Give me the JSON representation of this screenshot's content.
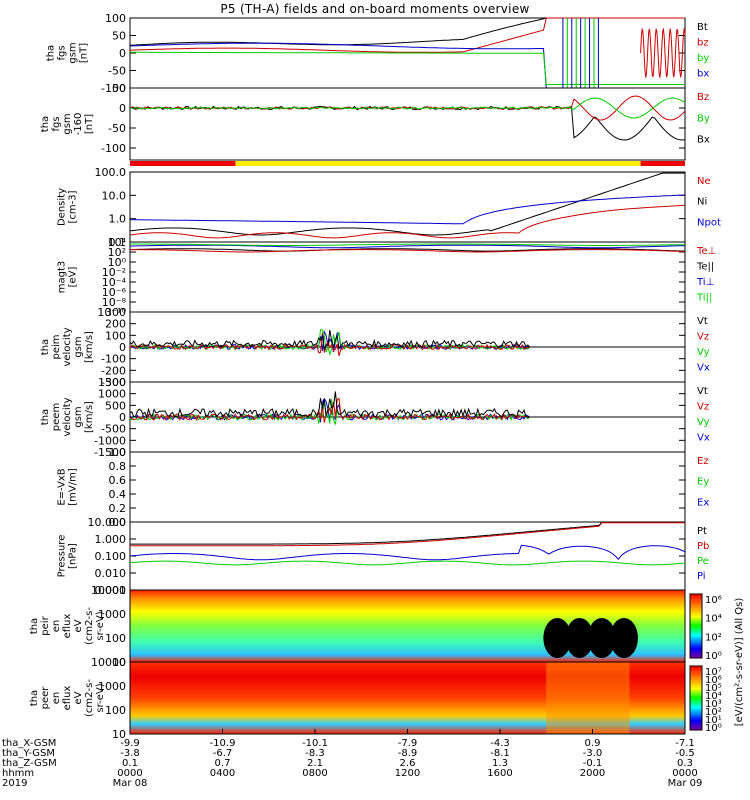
{
  "title": "P5 (TH-A) fields and on-board moments overview",
  "colors": {
    "black": "#000000",
    "red": "#cc0000",
    "green": "#00cc00",
    "blue": "#0000cc",
    "yellow": "#ffee00",
    "barred": "#ee0000"
  },
  "chart_data": [
    {
      "type": "line",
      "panel": "fgs",
      "ylabel_lines": [
        "tha",
        "fgs",
        "gsm",
        "[nT]"
      ],
      "ylim": [
        -100,
        100
      ],
      "ticks": [
        "100",
        "50",
        "0",
        "-50",
        "-100"
      ],
      "tick_values": [
        100,
        50,
        0,
        -50,
        -100
      ],
      "legend": [
        {
          "text": "Bt",
          "color": "#000000"
        },
        {
          "text": "bz",
          "color": "#cc0000"
        },
        {
          "text": "by",
          "color": "#00cc00"
        },
        {
          "text": "bx",
          "color": "#0000cc"
        }
      ]
    },
    {
      "type": "line",
      "panel": "fgs_zoom",
      "ylabel_lines": [
        "tha",
        "fgs",
        "gsm",
        "-160",
        "[nT]"
      ],
      "ylim": [
        -130,
        50
      ],
      "ticks": [
        "50",
        "0",
        "-50",
        "-100"
      ],
      "tick_values": [
        50,
        0,
        -50,
        -100
      ],
      "legend": [
        {
          "text": "Bz",
          "color": "#cc0000"
        },
        {
          "text": "By",
          "color": "#00cc00"
        },
        {
          "text": "Bx",
          "color": "#000000"
        }
      ]
    },
    {
      "type": "line",
      "panel": "density",
      "ylabel_lines": [
        "Density",
        "[cm-3]"
      ],
      "log": true,
      "ticks": [
        "100.0",
        "10.0",
        "1.0",
        "0.1"
      ],
      "tick_values": [
        100,
        10,
        1,
        0.1
      ],
      "legend": [
        {
          "text": "Ne",
          "color": "#cc0000"
        },
        {
          "text": "Ni",
          "color": "#000000"
        },
        {
          "text": "Npot",
          "color": "#0000cc"
        }
      ]
    },
    {
      "type": "line",
      "panel": "temperature",
      "ylabel_lines": [
        "magt3",
        "[eV]"
      ],
      "log": true,
      "ticks": [
        "10⁴",
        "10²",
        "10⁰",
        "10⁻²",
        "10⁻⁴",
        "10⁻⁶",
        "10⁻⁸",
        "10⁻¹⁰"
      ],
      "tick_values": [
        10000,
        100,
        1,
        0.01,
        0.0001,
        1e-06,
        1e-08,
        1e-10
      ],
      "legend": [
        {
          "text": "Te⊥",
          "color": "#cc0000"
        },
        {
          "text": "Te||",
          "color": "#000000"
        },
        {
          "text": "Ti⊥",
          "color": "#0000cc"
        },
        {
          "text": "Ti||",
          "color": "#00cc00"
        }
      ]
    },
    {
      "type": "line",
      "panel": "peim_velocity",
      "ylabel_lines": [
        "tha",
        "peim",
        "velocity",
        "gsm",
        "[km/s]"
      ],
      "ylim": [
        -300,
        300
      ],
      "ticks": [
        "300",
        "200",
        "100",
        "0",
        "-100",
        "-200",
        "-300"
      ],
      "tick_values": [
        300,
        200,
        100,
        0,
        -100,
        -200,
        -300
      ],
      "legend": [
        {
          "text": "Vt",
          "color": "#000000"
        },
        {
          "text": "Vz",
          "color": "#cc0000"
        },
        {
          "text": "Vy",
          "color": "#00cc00"
        },
        {
          "text": "Vx",
          "color": "#0000cc"
        }
      ]
    },
    {
      "type": "line",
      "panel": "peem_velocity",
      "ylabel_lines": [
        "tha",
        "peem",
        "velocity",
        "gsm",
        "[km/s]"
      ],
      "ylim": [
        -1500,
        1500
      ],
      "ticks": [
        "1500",
        "1000",
        "500",
        "0",
        "-500",
        "-1000",
        "-1500"
      ],
      "tick_values": [
        1500,
        1000,
        500,
        0,
        -500,
        -1000,
        -1500
      ],
      "legend": [
        {
          "text": "Vt",
          "color": "#000000"
        },
        {
          "text": "Vz",
          "color": "#cc0000"
        },
        {
          "text": "Vy",
          "color": "#00cc00"
        },
        {
          "text": "Vx",
          "color": "#0000cc"
        }
      ]
    },
    {
      "type": "line",
      "panel": "efield",
      "ylabel_lines": [
        "E=-VxB",
        "[mV/m]"
      ],
      "ylim": [
        0,
        1
      ],
      "ticks": [
        "1.0",
        "0.8",
        "0.6",
        "0.4",
        "0.2",
        "0.0"
      ],
      "tick_values": [
        1,
        0.8,
        0.6,
        0.4,
        0.2,
        0
      ],
      "legend": [
        {
          "text": "Ez",
          "color": "#cc0000"
        },
        {
          "text": "Ey",
          "color": "#00cc00"
        },
        {
          "text": "Ex",
          "color": "#0000cc"
        }
      ]
    },
    {
      "type": "line",
      "panel": "pressure",
      "ylabel_lines": [
        "Pressure",
        "[nPa]"
      ],
      "log": true,
      "ticks": [
        "10.000",
        "1.000",
        "0.100",
        "0.010",
        "0.001"
      ],
      "tick_values": [
        10,
        1,
        0.1,
        0.01,
        0.001
      ],
      "legend": [
        {
          "text": "Pt",
          "color": "#000000"
        },
        {
          "text": "Pb",
          "color": "#cc0000"
        },
        {
          "text": "Pe",
          "color": "#00cc00"
        },
        {
          "text": "Pi",
          "color": "#0000cc"
        }
      ]
    },
    {
      "type": "heatmap",
      "panel": "peir",
      "ylabel_lines": [
        "tha",
        "peir",
        "en",
        "eflux",
        "eV",
        "(cm2-s-",
        "sr-eV)"
      ],
      "log": true,
      "ticks": [
        "10000",
        "1000",
        "100",
        "10"
      ],
      "tick_values": [
        10000,
        1000,
        100,
        10
      ]
    },
    {
      "type": "heatmap",
      "panel": "peer",
      "ylabel_lines": [
        "tha",
        "peer",
        "en",
        "eflux",
        "eV",
        "(cm2-s-",
        "sr-eV)"
      ],
      "log": true,
      "ticks": [
        "10000",
        "1000",
        "100",
        "10"
      ],
      "tick_values": [
        10000,
        1000,
        100,
        10
      ]
    }
  ],
  "colorbars": [
    {
      "ticks": [
        "10⁶",
        "10⁴",
        "10²",
        "10⁰"
      ],
      "label": "[eV/(cm²-s-sr-eV)] (All Qs)"
    },
    {
      "ticks": [
        "10⁷",
        "10⁶",
        "10⁵",
        "10⁴",
        "10³",
        "10²",
        "10¹",
        "10⁰"
      ],
      "label": "[eV/(cm²-s-sr-eV)] (All Qs)"
    }
  ],
  "xaxis": {
    "row_labels": [
      "tha_X-GSM",
      "tha_Y-GSM",
      "tha_Z-GSM",
      "hhmm",
      "2019"
    ],
    "columns": [
      {
        "x": [
          "-9.9",
          "-3.8",
          "0.1",
          "0000",
          "Mar 08"
        ]
      },
      {
        "x": [
          "-10.9",
          "-6.7",
          "0.7",
          "0400",
          ""
        ]
      },
      {
        "x": [
          "-10.1",
          "-8.3",
          "2.1",
          "0800",
          ""
        ]
      },
      {
        "x": [
          "-7.9",
          "-8.9",
          "2.6",
          "1200",
          ""
        ]
      },
      {
        "x": [
          "-4.3",
          "-8.1",
          "1.3",
          "1600",
          ""
        ]
      },
      {
        "x": [
          "0.9",
          "-3.0",
          "-0.1",
          "2000",
          ""
        ]
      },
      {
        "x": [
          "-7.1",
          "-0.5",
          "0.3",
          "0000",
          "Mar 09"
        ]
      }
    ]
  }
}
